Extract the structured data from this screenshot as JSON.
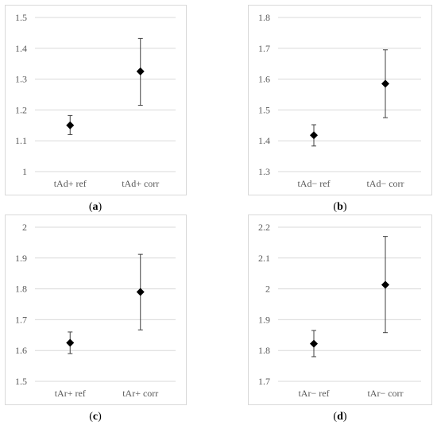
{
  "chart_data": [
    {
      "type": "scatter",
      "panel_label": "a",
      "categories": [
        "tAd+ ref",
        "tAd+ corr"
      ],
      "values": [
        1.15,
        1.325
      ],
      "error_upper": [
        1.182,
        1.432
      ],
      "error_lower": [
        1.12,
        1.215
      ],
      "ylim": [
        1,
        1.5
      ],
      "yticks": [
        "1",
        "1.1",
        "1.2",
        "1.3",
        "1.4",
        "1.5"
      ],
      "grid": true,
      "marker": "diamond"
    },
    {
      "type": "scatter",
      "panel_label": "b",
      "categories": [
        "tAd− ref",
        "tAd− corr"
      ],
      "values": [
        1.418,
        1.585
      ],
      "error_upper": [
        1.452,
        1.695
      ],
      "error_lower": [
        1.383,
        1.475
      ],
      "ylim": [
        1.3,
        1.8
      ],
      "yticks": [
        "1.3",
        "1.4",
        "1.5",
        "1.6",
        "1.7",
        "1.8"
      ],
      "grid": true,
      "marker": "diamond"
    },
    {
      "type": "scatter",
      "panel_label": "c",
      "categories": [
        "tAr+ ref",
        "tAr+ corr"
      ],
      "values": [
        1.625,
        1.79
      ],
      "error_upper": [
        1.66,
        1.912
      ],
      "error_lower": [
        1.59,
        1.667
      ],
      "ylim": [
        1.5,
        2
      ],
      "yticks": [
        "1.5",
        "1.6",
        "1.7",
        "1.8",
        "1.9",
        "2"
      ],
      "grid": true,
      "marker": "diamond"
    },
    {
      "type": "scatter",
      "panel_label": "d",
      "categories": [
        "tAr− ref",
        "tAr− corr"
      ],
      "values": [
        1.822,
        2.013
      ],
      "error_upper": [
        1.865,
        2.17
      ],
      "error_lower": [
        1.78,
        1.858
      ],
      "ylim": [
        1.7,
        2.2
      ],
      "yticks": [
        "1.7",
        "1.8",
        "1.9",
        "2",
        "2.1",
        "2.2"
      ],
      "grid": true,
      "marker": "diamond"
    }
  ],
  "captions": [
    "a",
    "b",
    "c",
    "d"
  ],
  "colors": {
    "marker": "#000000",
    "grid": "#d9d9d9",
    "frame": "#d9d9d9",
    "tick_text": "#595959"
  }
}
